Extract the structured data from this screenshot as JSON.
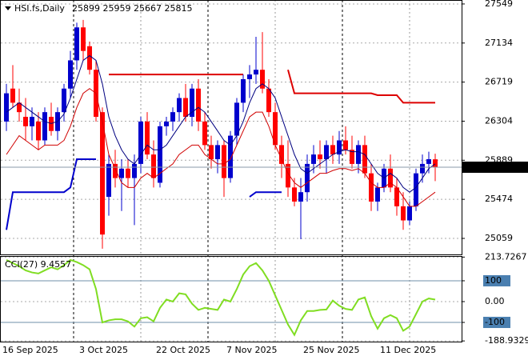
{
  "chart_data": [
    {
      "type": "candlestick",
      "title": "HSI.fs,Daily",
      "ohlc_label": "25899 25959 25667 25815",
      "categories": [
        "16 Sep 2025",
        null,
        null,
        null,
        null,
        null,
        null,
        null,
        null,
        null,
        null,
        null,
        "3 Oct 2025",
        null,
        null,
        null,
        null,
        null,
        null,
        null,
        null,
        null,
        null,
        null,
        "22 Oct 2025",
        null,
        null,
        null,
        null,
        null,
        null,
        null,
        null,
        null,
        null,
        "7 Nov 2025",
        null,
        null,
        null,
        null,
        null,
        null,
        null,
        null,
        null,
        null,
        null,
        "25 Nov 2025",
        null,
        null,
        null,
        null,
        null,
        null,
        null,
        null,
        null,
        null,
        null,
        "11 Dec 2025",
        null,
        null,
        null,
        null,
        null,
        null,
        null,
        null
      ],
      "open": [
        26300,
        26650,
        26500,
        26350,
        26250,
        26300,
        26100,
        26350,
        26200,
        26400,
        26650,
        26950,
        27300,
        27100,
        26850,
        26400,
        25500,
        25850,
        25700,
        25800,
        25700,
        25850,
        26300,
        25950,
        25650,
        26250,
        26300,
        26400,
        26550,
        26350,
        26650,
        26300,
        26050,
        25900,
        26050,
        25700,
        26150,
        26500,
        26750,
        26800,
        26850,
        26650,
        26400,
        26050,
        25850,
        25600,
        25450,
        25550,
        25850,
        25950,
        25900,
        26050,
        25950,
        26100,
        26000,
        25850,
        26050,
        25750,
        25450,
        25600,
        25800,
        25600,
        25400,
        25250,
        25400,
        25750,
        25850,
        25899
      ],
      "high": [
        26700,
        26900,
        26650,
        26550,
        26450,
        26400,
        26450,
        26500,
        26450,
        26700,
        27050,
        27350,
        27380,
        27150,
        26950,
        26450,
        25950,
        26000,
        25900,
        25900,
        25950,
        26350,
        26400,
        26100,
        26300,
        26350,
        26450,
        26600,
        26700,
        26700,
        26750,
        26400,
        26150,
        26100,
        26100,
        26200,
        26550,
        26800,
        26900,
        27200,
        27250,
        26750,
        26500,
        26150,
        26100,
        25700,
        25700,
        25950,
        26050,
        26100,
        26100,
        26150,
        26200,
        26250,
        26150,
        26100,
        26150,
        25850,
        25650,
        25850,
        25950,
        25700,
        25550,
        25450,
        25800,
        25950,
        25980,
        25959
      ],
      "low": [
        26200,
        26450,
        26300,
        26100,
        26100,
        26000,
        26050,
        26150,
        26100,
        26300,
        26550,
        26850,
        26950,
        26800,
        26300,
        24950,
        25300,
        25600,
        25350,
        25600,
        25200,
        25750,
        25900,
        25600,
        25600,
        26150,
        26200,
        26300,
        26300,
        26250,
        26200,
        26000,
        25800,
        25750,
        25500,
        25650,
        26050,
        26400,
        26550,
        26700,
        26600,
        26350,
        26000,
        25700,
        25500,
        25400,
        25050,
        25450,
        25750,
        25800,
        25750,
        25850,
        25850,
        25950,
        25800,
        25750,
        25700,
        25350,
        25350,
        25550,
        25550,
        25300,
        25150,
        25200,
        25350,
        25650,
        25750,
        25667
      ],
      "close": [
        26600,
        26500,
        26400,
        26250,
        26350,
        26100,
        26400,
        26200,
        26400,
        26650,
        26950,
        27300,
        27050,
        26850,
        26350,
        25100,
        25850,
        25700,
        25800,
        25700,
        25850,
        26300,
        25950,
        25700,
        26250,
        26300,
        26400,
        26550,
        26350,
        26650,
        26300,
        26050,
        25900,
        26050,
        25700,
        26150,
        26500,
        26750,
        26800,
        26850,
        26650,
        26400,
        26050,
        25850,
        25600,
        25450,
        25550,
        25850,
        25950,
        25900,
        26050,
        25950,
        26100,
        26000,
        25850,
        26050,
        25750,
        25450,
        25600,
        25800,
        25600,
        25400,
        25250,
        25400,
        25750,
        25850,
        25900,
        25815
      ],
      "up_color": "#0000cd",
      "down_color": "#ff0000",
      "moving_averages": [
        {
          "color": "#000080",
          "values": [
            26400,
            26450,
            26500,
            26450,
            26400,
            26350,
            26300,
            26280,
            26300,
            26380,
            26550,
            26750,
            26950,
            27000,
            26950,
            26700,
            26350,
            26150,
            26000,
            25900,
            25850,
            25950,
            26050,
            26000,
            26000,
            26050,
            26150,
            26250,
            26350,
            26400,
            26450,
            26400,
            26300,
            26200,
            26100,
            26050,
            26150,
            26300,
            26500,
            26650,
            26700,
            26650,
            26550,
            26350,
            26150,
            25950,
            25800,
            25750,
            25800,
            25850,
            25900,
            25950,
            25980,
            26000,
            25980,
            25980,
            25950,
            25850,
            25750,
            25700,
            25750,
            25700,
            25600,
            25550,
            25600,
            25700,
            25800,
            25850
          ]
        },
        {
          "color": "#d00000",
          "values": [
            25950,
            26050,
            26150,
            26100,
            26050,
            26000,
            26050,
            26050,
            26050,
            26100,
            26250,
            26450,
            26600,
            26650,
            26600,
            26300,
            25950,
            25800,
            25650,
            25600,
            25600,
            25700,
            25750,
            25700,
            25750,
            25800,
            25850,
            25950,
            26000,
            26050,
            26050,
            25950,
            25900,
            25850,
            25850,
            25900,
            26050,
            26200,
            26350,
            26400,
            26400,
            26250,
            26050,
            25900,
            25750,
            25650,
            25600,
            25650,
            25700,
            25750,
            25750,
            25780,
            25800,
            25800,
            25780,
            25800,
            25750,
            25650,
            25600,
            25600,
            25650,
            25600,
            25500,
            25400,
            25400,
            25450,
            25500,
            25550
          ]
        }
      ],
      "levels": [
        {
          "color": "#0000cc",
          "values": [
            25150,
            25550,
            25550,
            25550,
            25550,
            25550,
            25550,
            25550,
            25550,
            25550,
            25600,
            25900,
            25900,
            25900,
            25900,
            null,
            null,
            null,
            null,
            null,
            null,
            null,
            null,
            null,
            null,
            null,
            null,
            null,
            null,
            null,
            null,
            null,
            null,
            null,
            null,
            null,
            null,
            null,
            25500,
            25550,
            25550,
            25550,
            25550,
            25550,
            null,
            null,
            null,
            null,
            null,
            null,
            null,
            null,
            null,
            null,
            null,
            null,
            null,
            null,
            null,
            null,
            null,
            null,
            null,
            null,
            null,
            null,
            null,
            null
          ]
        },
        {
          "color": "#dd0000",
          "values": [
            null,
            null,
            null,
            null,
            null,
            null,
            null,
            null,
            null,
            null,
            null,
            null,
            null,
            null,
            null,
            null,
            26800,
            26800,
            26800,
            26800,
            26800,
            26800,
            26800,
            26800,
            26800,
            26800,
            26800,
            26800,
            26800,
            26800,
            26800,
            26800,
            26800,
            26800,
            26800,
            26800,
            26800,
            26800,
            null,
            null,
            null,
            null,
            null,
            null,
            26850,
            26600,
            26600,
            26600,
            26600,
            26600,
            26600,
            26600,
            26600,
            26600,
            26600,
            26600,
            26600,
            26600,
            26580,
            26580,
            26580,
            26580,
            26500,
            26500,
            26500,
            26500,
            26500,
            26500
          ]
        }
      ],
      "last_price": 25815,
      "ylim": [
        24889,
        27591
      ],
      "yticks": [
        27549,
        27134,
        26719,
        26304,
        25889,
        25474,
        25059
      ],
      "grid": true
    },
    {
      "type": "line",
      "title": "CCI(27) 9.4557",
      "color": "#80dd22",
      "values": [
        200,
        185,
        170,
        150,
        140,
        135,
        150,
        165,
        155,
        175,
        200,
        190,
        175,
        155,
        60,
        -100,
        -90,
        -85,
        -85,
        -95,
        -120,
        -80,
        -75,
        -95,
        -30,
        10,
        0,
        40,
        35,
        -10,
        -40,
        -30,
        -35,
        -40,
        10,
        0,
        60,
        130,
        170,
        185,
        150,
        100,
        30,
        -40,
        -110,
        -160,
        -90,
        -45,
        -45,
        -40,
        -38,
        5,
        -20,
        -35,
        -40,
        10,
        20,
        -70,
        -130,
        -80,
        -65,
        -80,
        -140,
        -120,
        -60,
        0,
        15,
        9.4557
      ],
      "levels": [
        100,
        -100
      ],
      "ylim": [
        -196,
        219
      ],
      "yticks": [
        213.7267,
        100,
        {
          "value": 0,
          "label": "0.00"
        },
        -100,
        -188.9329
      ],
      "grid": true
    }
  ]
}
